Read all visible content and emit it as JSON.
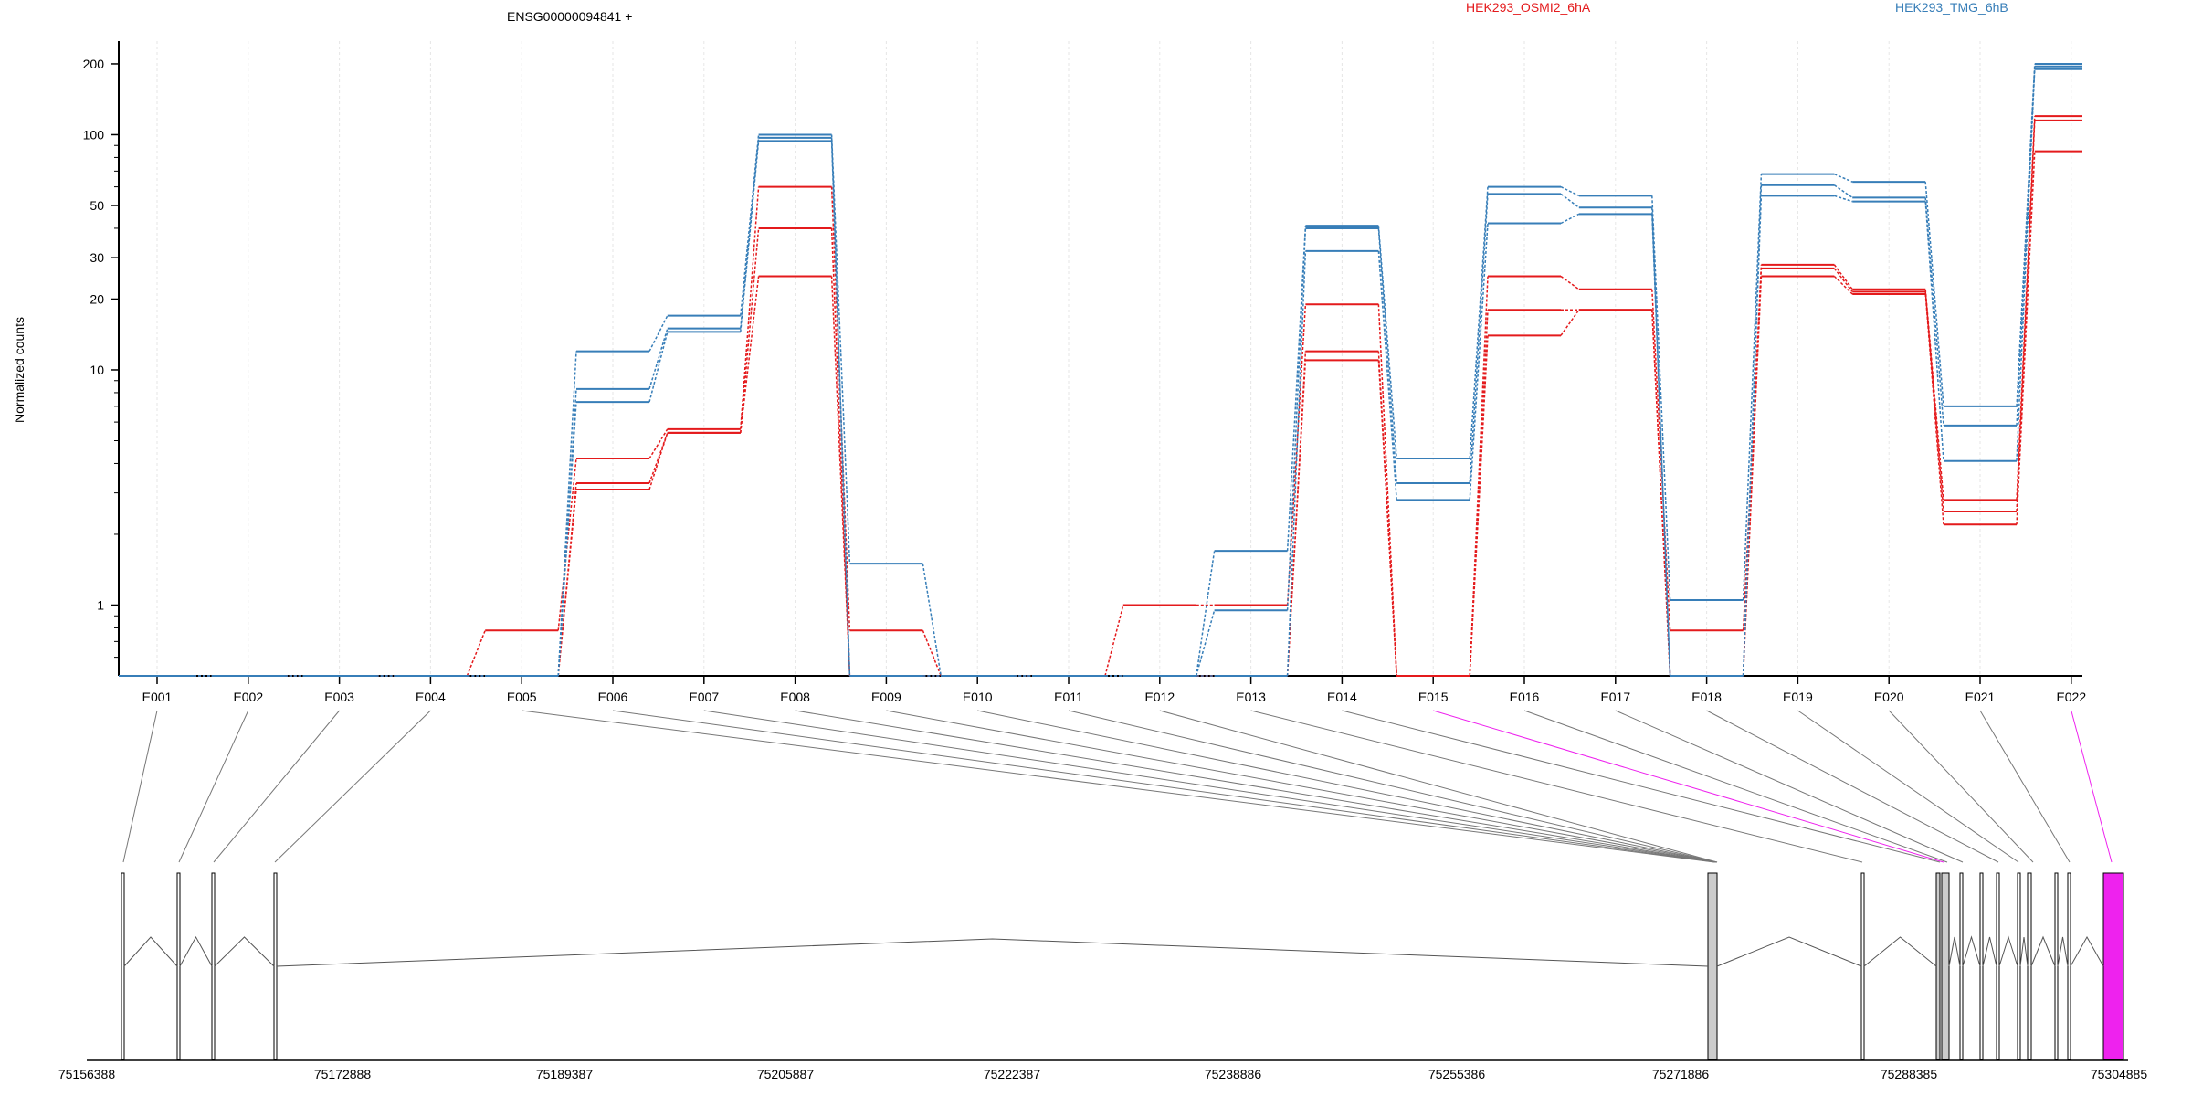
{
  "chart_data": {
    "type": "line",
    "title": "ENSG00000094841 +",
    "ylabel": "Normalized counts",
    "yscale": "log",
    "ylim": [
      0.5,
      250
    ],
    "yticks": [
      1,
      10,
      20,
      30,
      50,
      100,
      200
    ],
    "bins": [
      "E001",
      "E002",
      "E003",
      "E004",
      "E005",
      "E006",
      "E007",
      "E008",
      "E009",
      "E010",
      "E011",
      "E012",
      "E013",
      "E014",
      "E015",
      "E016",
      "E017",
      "E018",
      "E019",
      "E020",
      "E021",
      "E022"
    ],
    "grid": true,
    "legend": "top",
    "series": [
      {
        "name": "HEK293_OSMI2_6hA",
        "color": "#e41a1c",
        "lines": [
          [
            0.5,
            0.5,
            0.5,
            0.5,
            0.78,
            4.2,
            5.6,
            60,
            0.78,
            0.5,
            0.5,
            1.0,
            1.0,
            19,
            0.5,
            25,
            22,
            0.78,
            28,
            22,
            2.8,
            120
          ],
          [
            0.5,
            0.5,
            0.5,
            0.5,
            0.5,
            3.3,
            5.4,
            40,
            0.5,
            0.5,
            0.5,
            0.5,
            0.5,
            12,
            0.5,
            18,
            18,
            0.5,
            27,
            21.5,
            2.5,
            115
          ],
          [
            0.5,
            0.5,
            0.5,
            0.5,
            0.5,
            3.1,
            5.4,
            25,
            0.5,
            0.5,
            0.5,
            0.5,
            0.5,
            11,
            0.5,
            14,
            18,
            0.5,
            25,
            21,
            2.2,
            85
          ]
        ]
      },
      {
        "name": "HEK293_TMG_6hB",
        "color": "#377eb8",
        "lines": [
          [
            0.5,
            0.5,
            0.5,
            0.5,
            0.5,
            12,
            17,
            100,
            1.5,
            0.5,
            0.5,
            0.5,
            1.7,
            41,
            4.2,
            60,
            55,
            1.05,
            68,
            63,
            7,
            200
          ],
          [
            0.5,
            0.5,
            0.5,
            0.5,
            0.5,
            8.3,
            15,
            97,
            0.5,
            0.5,
            0.5,
            0.5,
            0.95,
            40,
            3.3,
            56,
            49,
            0.5,
            61,
            54,
            5.8,
            195
          ],
          [
            0.5,
            0.5,
            0.5,
            0.5,
            0.5,
            7.3,
            14.5,
            94,
            0.5,
            0.5,
            0.5,
            0.5,
            0.5,
            32,
            2.8,
            42,
            46,
            0.5,
            55,
            52,
            4.1,
            190
          ]
        ]
      }
    ],
    "genome": {
      "coords": [
        "75156388",
        "75172888",
        "75189387",
        "75205887",
        "75222387",
        "75238886",
        "75255386",
        "75271886",
        "75288385",
        "75304885"
      ],
      "highlight_color": "#ee22ee"
    }
  }
}
